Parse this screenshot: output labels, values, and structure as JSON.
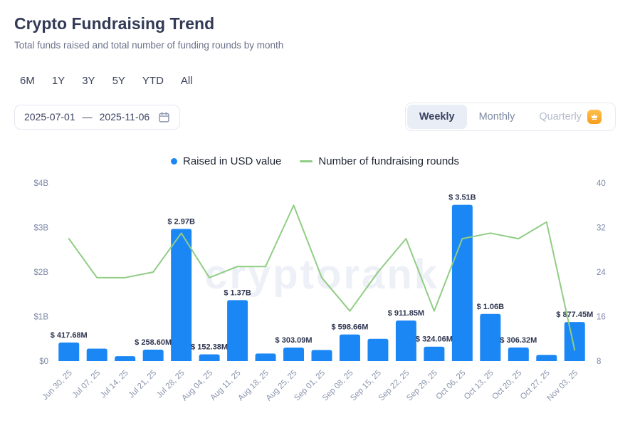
{
  "header": {
    "title": "Crypto Fundraising Trend",
    "subtitle": "Total funds raised and total number of funding rounds by month"
  },
  "controls": {
    "ranges": [
      "6M",
      "1Y",
      "3Y",
      "5Y",
      "YTD",
      "All"
    ],
    "date_from": "2025-07-01",
    "date_separator": "—",
    "date_to": "2025-11-06",
    "period_tabs": [
      {
        "label": "Weekly",
        "active": true
      },
      {
        "label": "Monthly",
        "active": false
      },
      {
        "label": "Quarterly",
        "active": false,
        "premium": true
      }
    ]
  },
  "legend": [
    {
      "label": "Raised in USD value",
      "color": "#1b87f5"
    },
    {
      "label": "Number of fundraising rounds",
      "color": "#90cd84"
    }
  ],
  "watermark": "cryptorank",
  "chart_data": {
    "type": "bar",
    "combo": "bar+line",
    "categories": [
      "Jun 30, 25",
      "Jul 07, 25",
      "Jul 14, 25",
      "Jul 21, 25",
      "Jul 28, 25",
      "Aug 04, 25",
      "Aug 11, 25",
      "Aug 18, 25",
      "Aug 25, 25",
      "Sep 01, 25",
      "Sep 08, 25",
      "Sep 15, 25",
      "Sep 22, 25",
      "Sep 29, 25",
      "Oct 06, 25",
      "Oct 13, 25",
      "Oct 20, 25",
      "Oct 27, 25",
      "Nov 03, 25"
    ],
    "series": [
      {
        "name": "Raised in USD value",
        "type": "bar",
        "axis": "left",
        "color": "#1b87f5",
        "values_usd_millions": [
          417.68,
          280,
          110,
          258.6,
          2970,
          152.38,
          1370,
          170,
          303.09,
          250,
          598.66,
          500,
          911.85,
          324.06,
          3510,
          1060,
          306.32,
          140,
          877.45
        ],
        "labels": [
          "$ 417.68M",
          null,
          null,
          "$ 258.60M",
          "$ 2.97B",
          "$ 152.38M",
          "$ 1.37B",
          null,
          "$ 303.09M",
          null,
          "$ 598.66M",
          null,
          "$ 911.85M",
          "$ 324.06M",
          "$ 3.51B",
          "$ 1.06B",
          "$ 306.32M",
          null,
          "$ 877.45M"
        ]
      },
      {
        "name": "Number of fundraising rounds",
        "type": "line",
        "axis": "right",
        "color": "#90cd84",
        "values": [
          30,
          23,
          23,
          24,
          31,
          23,
          25,
          25,
          36,
          23,
          17,
          24,
          30,
          17,
          30,
          31,
          30,
          33,
          10
        ]
      }
    ],
    "left_axis": {
      "labels": [
        "$0",
        "$1B",
        "$2B",
        "$3B",
        "$4B"
      ],
      "values_usd_millions": [
        0,
        1000,
        2000,
        3000,
        4000
      ]
    },
    "right_axis": {
      "labels": [
        "8",
        "16",
        "24",
        "32",
        "40"
      ],
      "values": [
        8,
        16,
        24,
        32,
        40
      ]
    },
    "grid": false,
    "legend_position": "top"
  }
}
